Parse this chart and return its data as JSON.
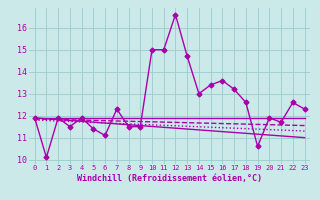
{
  "title": "",
  "xlabel": "Windchill (Refroidissement éolien,°C)",
  "background_color": "#cce9e9",
  "grid_color": "#99cccc",
  "line_color": "#aa00aa",
  "xlim": [
    -0.5,
    23.5
  ],
  "ylim": [
    9.8,
    16.9
  ],
  "xticks": [
    0,
    1,
    2,
    3,
    4,
    5,
    6,
    7,
    8,
    9,
    10,
    11,
    12,
    13,
    14,
    15,
    16,
    17,
    18,
    19,
    20,
    21,
    22,
    23
  ],
  "yticks": [
    10,
    11,
    12,
    13,
    14,
    15,
    16
  ],
  "series": [
    {
      "x": [
        0,
        1,
        2,
        3,
        4,
        5,
        6,
        7,
        8,
        9,
        10,
        11,
        12,
        13,
        14,
        15,
        16,
        17,
        18,
        19,
        20,
        21,
        22,
        23
      ],
      "y": [
        11.9,
        10.1,
        11.9,
        11.5,
        11.9,
        11.4,
        11.1,
        12.3,
        11.5,
        11.5,
        15.0,
        15.0,
        16.6,
        14.7,
        13.0,
        13.4,
        13.6,
        13.2,
        12.6,
        10.6,
        11.9,
        11.7,
        12.6,
        12.3
      ],
      "style": "-",
      "marker": "D",
      "markersize": 2.5,
      "linewidth": 1.0
    },
    {
      "x": [
        0,
        23
      ],
      "y": [
        11.9,
        11.9
      ],
      "style": "-",
      "marker": "None",
      "markersize": 0,
      "linewidth": 1.0
    },
    {
      "x": [
        0,
        23
      ],
      "y": [
        11.9,
        11.0
      ],
      "style": "-",
      "marker": "None",
      "markersize": 0,
      "linewidth": 1.0
    },
    {
      "x": [
        0,
        23
      ],
      "y": [
        11.85,
        11.55
      ],
      "style": "--",
      "marker": "None",
      "markersize": 0,
      "linewidth": 1.0
    },
    {
      "x": [
        0,
        23
      ],
      "y": [
        11.8,
        11.3
      ],
      "style": ":",
      "marker": "None",
      "markersize": 0,
      "linewidth": 1.0
    }
  ]
}
